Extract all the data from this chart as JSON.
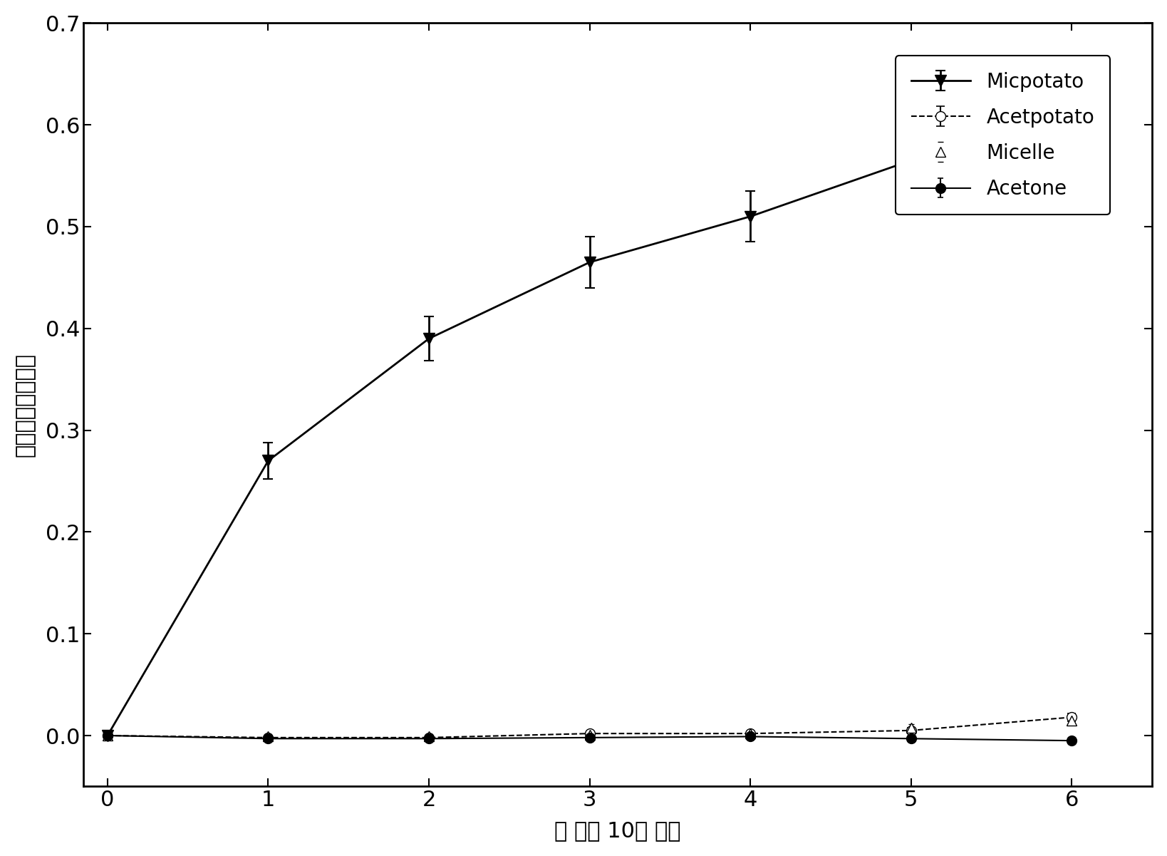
{
  "x": [
    0,
    1,
    2,
    3,
    4,
    5,
    6
  ],
  "micpotato_y": [
    0.0,
    0.27,
    0.39,
    0.465,
    0.51,
    0.565,
    0.61
  ],
  "micpotato_yerr": [
    0.0,
    0.018,
    0.022,
    0.025,
    0.025,
    0.022,
    0.028
  ],
  "acetpotato_y": [
    0.0,
    -0.002,
    -0.002,
    0.002,
    0.002,
    0.005,
    0.018
  ],
  "acetpotato_yerr": [
    0.0,
    0.002,
    0.002,
    0.002,
    0.002,
    0.003,
    0.004
  ],
  "micelle_y": [
    0.0,
    -0.001,
    -0.001,
    0.001,
    0.002,
    0.008,
    0.015
  ],
  "micelle_yerr": [
    0.0,
    0.001,
    0.001,
    0.001,
    0.002,
    0.003,
    0.004
  ],
  "acetone_y": [
    0.0,
    -0.003,
    -0.003,
    -0.002,
    -0.001,
    -0.003,
    -0.005
  ],
  "acetone_yerr": [
    0.0,
    0.001,
    0.001,
    0.001,
    0.001,
    0.002,
    0.002
  ],
  "xlabel": "时 间（ 10分 钟）",
  "ylabel_chars": [
    "活",
    "性",
    "氧",
    "的",
    "相",
    "对",
    "产",
    "率"
  ],
  "xlim": [
    -0.15,
    6.5
  ],
  "ylim": [
    -0.05,
    0.7
  ],
  "yticks": [
    0.0,
    0.1,
    0.2,
    0.3,
    0.4,
    0.5,
    0.6,
    0.7
  ],
  "xticks": [
    0,
    1,
    2,
    3,
    4,
    5,
    6
  ],
  "legend_labels": [
    "Micpotato",
    "Acetpotato",
    "Micelle",
    "Acetone"
  ],
  "bg_color": "#ffffff",
  "tick_fontsize": 22,
  "label_fontsize": 22,
  "legend_fontsize": 20,
  "markersize_main": 12,
  "markersize_small": 10,
  "linewidth_main": 2.0,
  "linewidth_thin": 1.5,
  "capsize": 5
}
